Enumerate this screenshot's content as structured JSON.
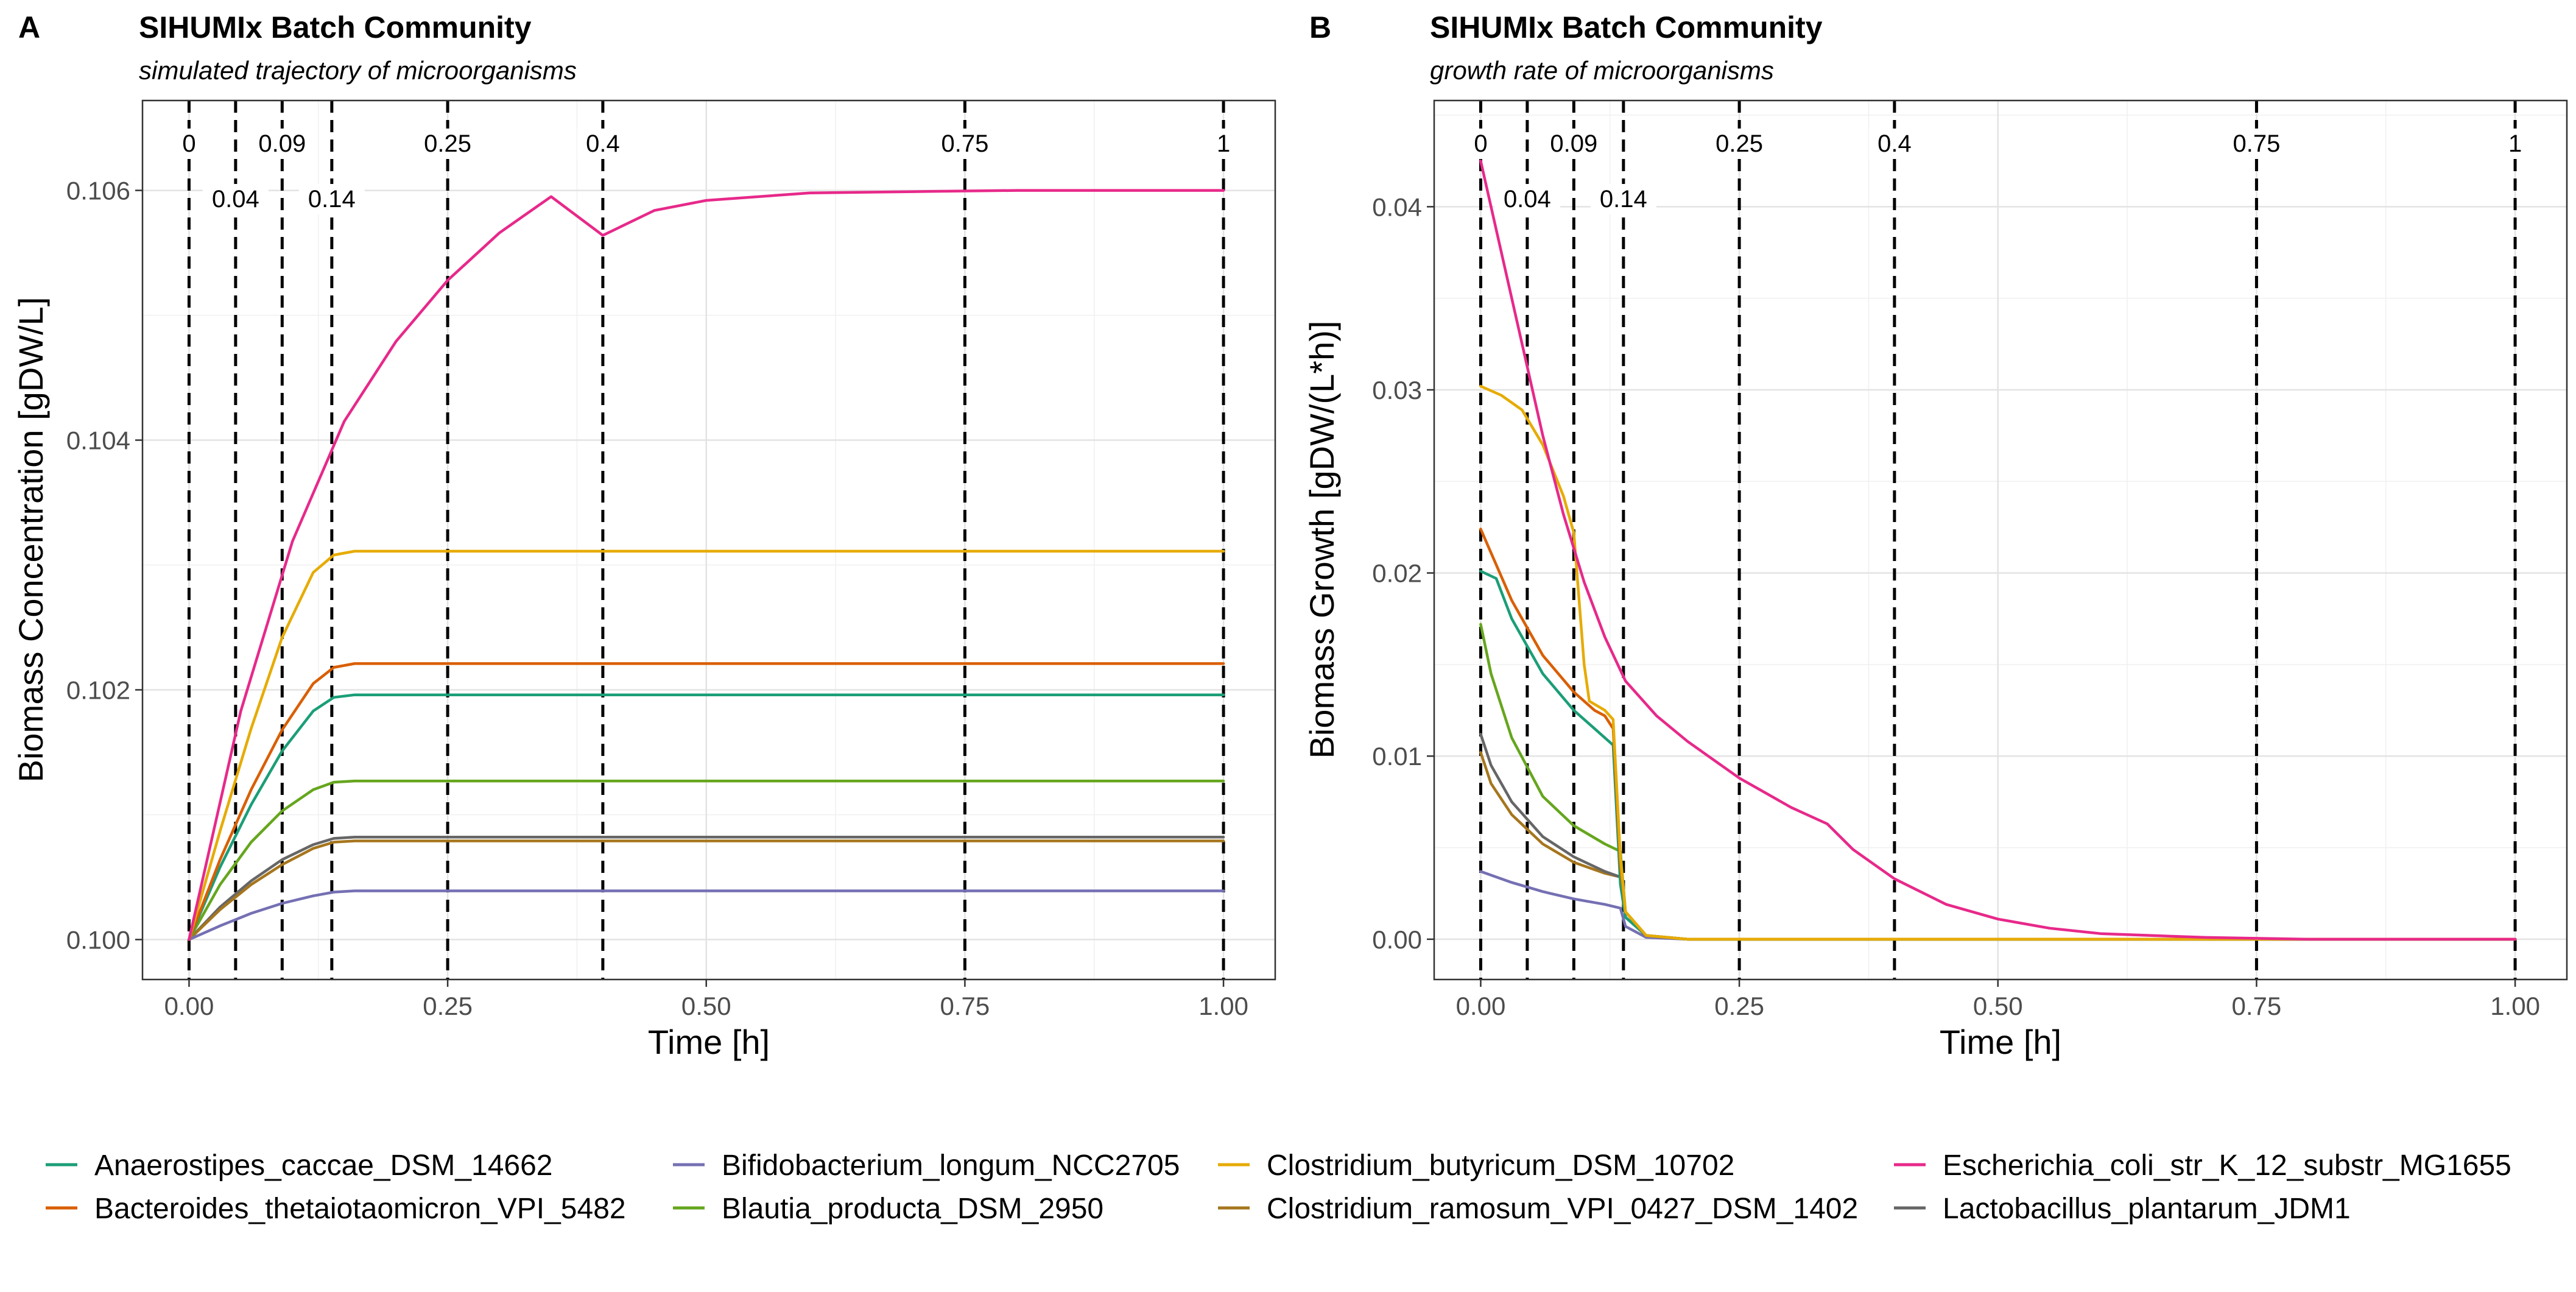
{
  "chart_data": [
    {
      "panel": "A",
      "type": "line",
      "title": "SIHUMIx Batch Community",
      "subtitle": "simulated trajectory of microorganisms",
      "xlabel": "Time [h]",
      "ylabel": "Biomass Concentration [gDW/L]",
      "xlim": [
        -0.045,
        1.05
      ],
      "ylim": [
        0.09968,
        0.10672
      ],
      "xticks": [
        0,
        0.25,
        0.5,
        0.75,
        1
      ],
      "xtick_labels": [
        "0.00",
        "0.25",
        "0.50",
        "0.75",
        "1.00"
      ],
      "yticks": [
        0.1,
        0.102,
        0.104,
        0.106
      ],
      "ytick_labels": [
        "0.100",
        "0.102",
        "0.104",
        "0.106"
      ],
      "vlines": [
        {
          "x": 0,
          "label": "0",
          "row": "upper"
        },
        {
          "x": 0.045,
          "label": "0.04",
          "row": "lower"
        },
        {
          "x": 0.09,
          "label": "0.09",
          "row": "upper"
        },
        {
          "x": 0.138,
          "label": "0.14",
          "row": "lower"
        },
        {
          "x": 0.25,
          "label": "0.25",
          "row": "upper"
        },
        {
          "x": 0.4,
          "label": "0.4",
          "row": "upper"
        },
        {
          "x": 0.75,
          "label": "0.75",
          "row": "upper"
        },
        {
          "x": 1,
          "label": "1",
          "row": "upper"
        }
      ],
      "series": [
        {
          "name": "Lactobacillus_plantarum_JDM1",
          "color": "#666666",
          "x": [
            0,
            0.03,
            0.06,
            0.09,
            0.12,
            0.14,
            0.16,
            0.2,
            1
          ],
          "y": [
            0.1,
            0.10026,
            0.10047,
            0.10064,
            0.10076,
            0.10081,
            0.10082,
            0.10082,
            0.10082
          ]
        },
        {
          "name": "Clostridium_ramosum_VPI_0427_DSM_1402",
          "color": "#A6761D",
          "x": [
            0,
            0.03,
            0.06,
            0.09,
            0.12,
            0.14,
            0.16,
            0.2,
            1
          ],
          "y": [
            0.1,
            0.10024,
            0.10044,
            0.1006,
            0.10073,
            0.10078,
            0.10079,
            0.10079,
            0.10079
          ]
        },
        {
          "name": "Bifidobacterium_longum_NCC2705",
          "color": "#7570B3",
          "x": [
            0,
            0.03,
            0.06,
            0.09,
            0.12,
            0.14,
            0.16,
            0.2,
            1
          ],
          "y": [
            0.1,
            0.10011,
            0.10021,
            0.10029,
            0.10035,
            0.10038,
            0.10039,
            0.10039,
            0.10039
          ]
        },
        {
          "name": "Blautia_producta_DSM_2950",
          "color": "#66A61E",
          "x": [
            0,
            0.03,
            0.06,
            0.09,
            0.12,
            0.14,
            0.16,
            0.2,
            1
          ],
          "y": [
            0.1,
            0.10044,
            0.10078,
            0.10103,
            0.1012,
            0.10126,
            0.10127,
            0.10127,
            0.10127
          ]
        },
        {
          "name": "Anaerostipes_caccae_DSM_14662",
          "color": "#1B9E77",
          "x": [
            0,
            0.03,
            0.06,
            0.09,
            0.12,
            0.14,
            0.16,
            0.2,
            1
          ],
          "y": [
            0.1,
            0.10058,
            0.10108,
            0.10151,
            0.10183,
            0.10194,
            0.10196,
            0.10196,
            0.10196
          ]
        },
        {
          "name": "Bacteroides_thetaiotaomicron_VPI_5482",
          "color": "#D95F02",
          "x": [
            0,
            0.03,
            0.06,
            0.09,
            0.12,
            0.14,
            0.16,
            0.2,
            1
          ],
          "y": [
            0.1,
            0.10064,
            0.1012,
            0.10168,
            0.10205,
            0.10218,
            0.10221,
            0.10221,
            0.10221
          ]
        },
        {
          "name": "Clostridium_butyricum_DSM_10702",
          "color": "#E6AB02",
          "x": [
            0,
            0.03,
            0.06,
            0.09,
            0.12,
            0.14,
            0.16,
            0.2,
            1
          ],
          "y": [
            0.1,
            0.10087,
            0.10169,
            0.10242,
            0.10294,
            0.10308,
            0.10311,
            0.10311,
            0.10311
          ]
        },
        {
          "name": "Escherichia_coli_str_K_12_substr_MG1655",
          "color": "#E7298A",
          "x": [
            0,
            0.05,
            0.1,
            0.15,
            0.2,
            0.25,
            0.3,
            0.35,
            0.4,
            0.45,
            0.5,
            0.6,
            0.7,
            0.8,
            1
          ],
          "y": [
            0.1,
            0.10183,
            0.10319,
            0.10415,
            0.10479,
            0.10528,
            0.10566,
            0.10595,
            0.10564,
            0.10584,
            0.10592,
            0.10598,
            0.10599,
            0.106,
            0.106
          ]
        }
      ]
    },
    {
      "panel": "B",
      "type": "line",
      "title": "SIHUMIx Batch Community",
      "subtitle": "growth rate of microorganisms",
      "xlabel": "Time [h]",
      "ylabel": "Biomass Growth [gDW/(L*h)]",
      "xlim": [
        -0.045,
        1.05
      ],
      "ylim": [
        -0.0022,
        0.0458
      ],
      "xticks": [
        0,
        0.25,
        0.5,
        0.75,
        1
      ],
      "xtick_labels": [
        "0.00",
        "0.25",
        "0.50",
        "0.75",
        "1.00"
      ],
      "yticks": [
        0,
        0.01,
        0.02,
        0.03,
        0.04
      ],
      "ytick_labels": [
        "0.00",
        "0.01",
        "0.02",
        "0.03",
        "0.04"
      ],
      "vlines": [
        {
          "x": 0,
          "label": "0",
          "row": "upper"
        },
        {
          "x": 0.045,
          "label": "0.04",
          "row": "lower"
        },
        {
          "x": 0.09,
          "label": "0.09",
          "row": "upper"
        },
        {
          "x": 0.138,
          "label": "0.14",
          "row": "lower"
        },
        {
          "x": 0.25,
          "label": "0.25",
          "row": "upper"
        },
        {
          "x": 0.4,
          "label": "0.4",
          "row": "upper"
        },
        {
          "x": 0.75,
          "label": "0.75",
          "row": "upper"
        },
        {
          "x": 1,
          "label": "1",
          "row": "upper"
        }
      ],
      "series": [
        {
          "name": "Bifidobacterium_longum_NCC2705",
          "color": "#7570B3",
          "x": [
            0,
            0.03,
            0.06,
            0.09,
            0.12,
            0.135,
            0.14,
            0.16,
            0.2,
            1
          ],
          "y": [
            0.0037,
            0.0031,
            0.0026,
            0.0022,
            0.0019,
            0.0017,
            0.0007,
            0.0001,
            0,
            0
          ]
        },
        {
          "name": "Clostridium_ramosum_VPI_0427_DSM_1402",
          "color": "#A6761D",
          "x": [
            0,
            0.01,
            0.03,
            0.06,
            0.09,
            0.12,
            0.135,
            0.14,
            0.16,
            0.2,
            1
          ],
          "y": [
            0.0102,
            0.0085,
            0.0068,
            0.0052,
            0.0042,
            0.0036,
            0.0034,
            0.0012,
            0.0002,
            0,
            0
          ]
        },
        {
          "name": "Lactobacillus_plantarum_JDM1",
          "color": "#666666",
          "x": [
            0,
            0.01,
            0.03,
            0.06,
            0.09,
            0.12,
            0.135,
            0.14,
            0.16,
            0.2,
            1
          ],
          "y": [
            0.0112,
            0.0095,
            0.0075,
            0.0056,
            0.0045,
            0.0037,
            0.0034,
            0.0012,
            0.0002,
            0,
            0
          ]
        },
        {
          "name": "Blautia_producta_DSM_2950",
          "color": "#66A61E",
          "x": [
            0,
            0.01,
            0.03,
            0.06,
            0.09,
            0.12,
            0.135,
            0.14,
            0.16,
            0.2,
            1
          ],
          "y": [
            0.0172,
            0.0145,
            0.011,
            0.0078,
            0.0062,
            0.0052,
            0.0048,
            0.0015,
            0.0002,
            0,
            0
          ]
        },
        {
          "name": "Anaerostipes_caccae_DSM_14662",
          "color": "#1B9E77",
          "x": [
            0,
            0.015,
            0.03,
            0.06,
            0.09,
            0.11,
            0.12,
            0.128,
            0.135,
            0.14,
            0.16,
            0.2,
            1
          ],
          "y": [
            0.0201,
            0.0197,
            0.0175,
            0.0145,
            0.0125,
            0.0115,
            0.011,
            0.0106,
            0.003,
            0.0012,
            0.0002,
            0,
            0
          ]
        },
        {
          "name": "Bacteroides_thetaiotaomicron_VPI_5482",
          "color": "#D95F02",
          "x": [
            0,
            0.03,
            0.06,
            0.09,
            0.11,
            0.12,
            0.128,
            0.135,
            0.14,
            0.16,
            0.2,
            1
          ],
          "y": [
            0.0224,
            0.0185,
            0.0155,
            0.0135,
            0.0125,
            0.0122,
            0.0115,
            0.004,
            0.0015,
            0.0002,
            0,
            0
          ]
        },
        {
          "name": "Clostridium_butyricum_DSM_10702",
          "color": "#E6AB02",
          "x": [
            0,
            0.02,
            0.04,
            0.06,
            0.08,
            0.09,
            0.1,
            0.105,
            0.12,
            0.128,
            0.135,
            0.14,
            0.16,
            0.2,
            1
          ],
          "y": [
            0.0302,
            0.0297,
            0.0289,
            0.027,
            0.0242,
            0.0222,
            0.015,
            0.013,
            0.0125,
            0.012,
            0.0045,
            0.0015,
            0.0002,
            0,
            0
          ]
        },
        {
          "name": "Escherichia_coli_str_K_12_substr_MG1655",
          "color": "#E7298A",
          "x": [
            0,
            0.02,
            0.04,
            0.06,
            0.08,
            0.1,
            0.12,
            0.14,
            0.17,
            0.2,
            0.25,
            0.3,
            0.335,
            0.36,
            0.4,
            0.45,
            0.5,
            0.55,
            0.6,
            0.7,
            0.8,
            1
          ],
          "y": [
            0.0425,
            0.0375,
            0.0325,
            0.0275,
            0.0232,
            0.0195,
            0.0165,
            0.0141,
            0.0122,
            0.0108,
            0.0088,
            0.0072,
            0.0063,
            0.0049,
            0.0033,
            0.0019,
            0.0011,
            0.0006,
            0.0003,
            0.0001,
            0,
            0
          ]
        }
      ]
    }
  ],
  "legend": {
    "items": [
      {
        "name": "Anaerostipes_caccae_DSM_14662",
        "color": "#1B9E77"
      },
      {
        "name": "Bacteroides_thetaiotaomicron_VPI_5482",
        "color": "#D95F02"
      },
      {
        "name": "Bifidobacterium_longum_NCC2705",
        "color": "#7570B3"
      },
      {
        "name": "Blautia_producta_DSM_2950",
        "color": "#66A61E"
      },
      {
        "name": "Clostridium_butyricum_DSM_10702",
        "color": "#E6AB02"
      },
      {
        "name": "Clostridium_ramosum_VPI_0427_DSM_1402",
        "color": "#A6761D"
      },
      {
        "name": "Escherichia_coli_str_K_12_substr_MG1655",
        "color": "#E7298A"
      },
      {
        "name": "Lactobacillus_plantarum_JDM1",
        "color": "#666666"
      }
    ]
  }
}
